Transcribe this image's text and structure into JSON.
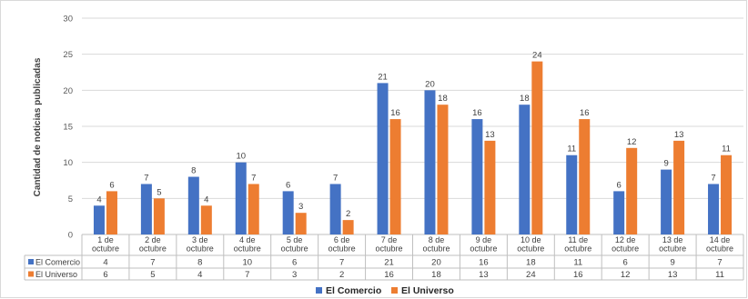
{
  "chart_data": {
    "type": "bar",
    "ylabel": "Cantidad de noticias publicadas",
    "ylim": [
      0,
      30
    ],
    "yticks": [
      0,
      5,
      10,
      15,
      20,
      25,
      30
    ],
    "grid": true,
    "legend_position": "bottom",
    "categories": [
      [
        "1 de",
        "octubre"
      ],
      [
        "2 de",
        "octubre"
      ],
      [
        "3 de",
        "octubre"
      ],
      [
        "4 de",
        "octubre"
      ],
      [
        "5 de",
        "octubre"
      ],
      [
        "6 de",
        "octubre"
      ],
      [
        "7 de",
        "octubre"
      ],
      [
        "8 de",
        "octubre"
      ],
      [
        "9 de",
        "octubre"
      ],
      [
        "10 de",
        "octubre"
      ],
      [
        "11 de",
        "octubre"
      ],
      [
        "12 de",
        "octubre"
      ],
      [
        "13 de",
        "octubre"
      ],
      [
        "14 de",
        "octubre"
      ]
    ],
    "series": [
      {
        "name": "El Comercio",
        "color": "#4472c4",
        "values": [
          4,
          7,
          8,
          10,
          6,
          7,
          21,
          20,
          16,
          18,
          11,
          6,
          9,
          7
        ]
      },
      {
        "name": "El Universo",
        "color": "#ed7d31",
        "values": [
          6,
          5,
          4,
          7,
          3,
          2,
          16,
          18,
          13,
          24,
          16,
          12,
          13,
          11
        ]
      }
    ]
  }
}
